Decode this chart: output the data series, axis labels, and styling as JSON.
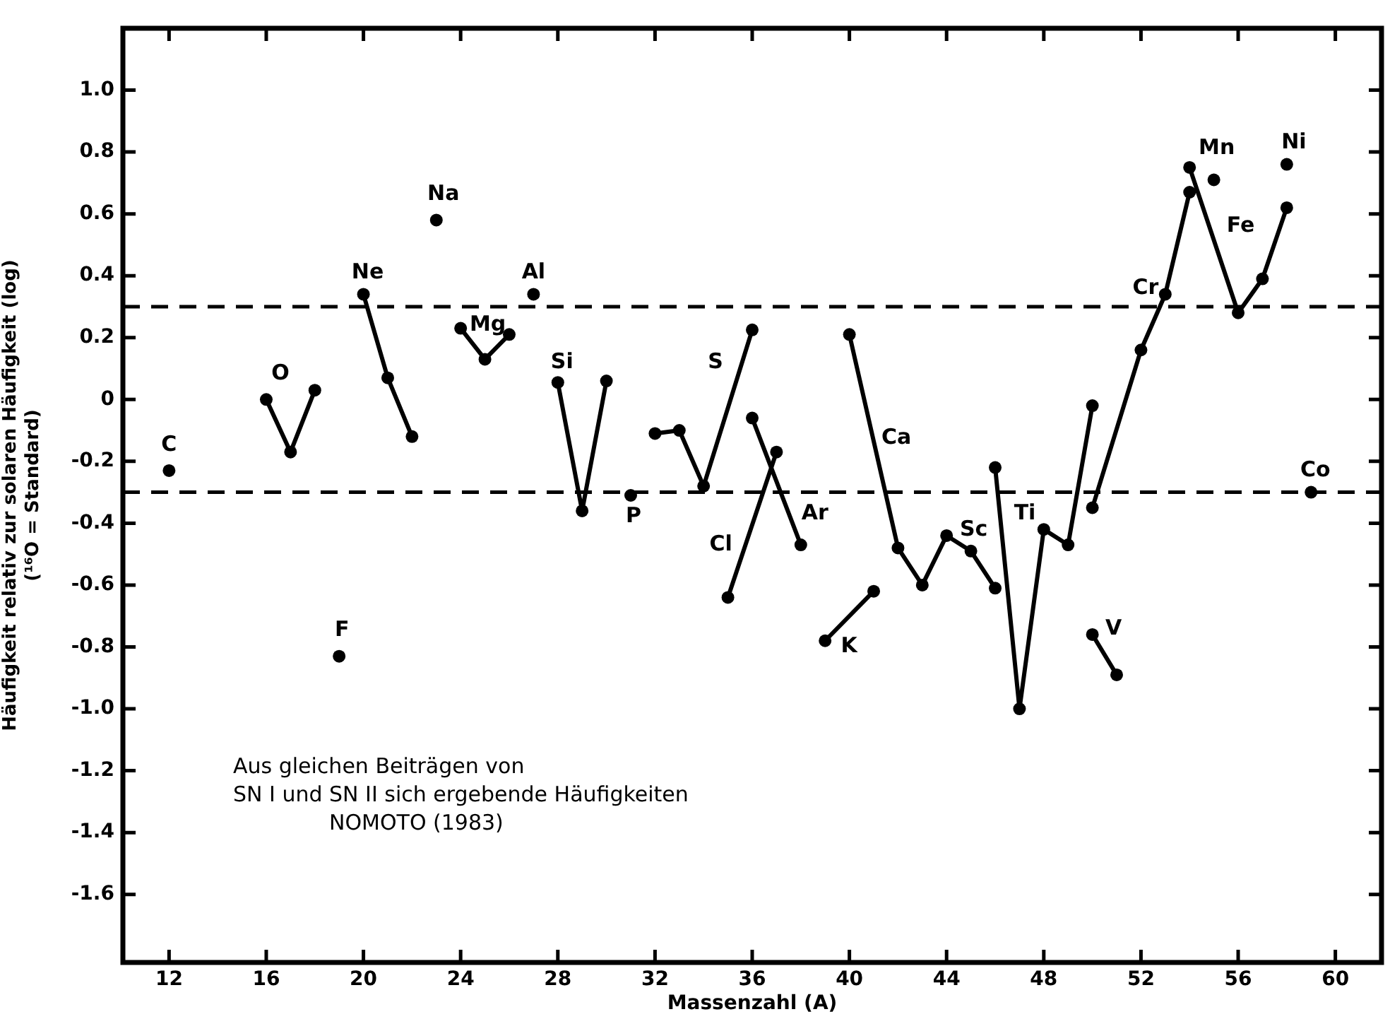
{
  "chart_data": {
    "type": "line",
    "xlabel": "Massenzahl (A)",
    "ylabel": "Häufigkeit relativ zur solaren Häufigkeit (log)\n(¹⁶O = Standard)",
    "xlim": [
      10.1,
      61.9
    ],
    "xticks": [
      12,
      16,
      20,
      24,
      28,
      32,
      36,
      40,
      44,
      48,
      52,
      56,
      60
    ],
    "ylim": [
      -1.82,
      1.2
    ],
    "yticks": [
      {
        "value": 1,
        "label": "1.0"
      },
      0.8,
      0.6,
      0.4,
      0.2,
      0,
      -0.2,
      -0.4,
      -0.6,
      -0.8,
      {
        "value": -1,
        "label": "-1.0"
      },
      -1.2,
      -1.4,
      -1.6
    ],
    "marker": "circle",
    "line_style": "solid",
    "series": [
      {
        "type": "scatter",
        "color": "#000000",
        "x": [
          12
        ],
        "values": [
          -0.23
        ]
      },
      {
        "color": "#000000",
        "x": [
          16,
          17,
          18
        ],
        "values": [
          0.0,
          -0.17,
          0.03
        ]
      },
      {
        "type": "scatter",
        "color": "#000000",
        "x": [
          19
        ],
        "values": [
          -0.83
        ]
      },
      {
        "color": "#000000",
        "x": [
          20,
          21,
          22
        ],
        "values": [
          0.34,
          0.07,
          -0.12
        ]
      },
      {
        "type": "scatter",
        "color": "#000000",
        "x": [
          23
        ],
        "values": [
          0.58
        ]
      },
      {
        "color": "#000000",
        "x": [
          24,
          25,
          26
        ],
        "values": [
          0.23,
          0.13,
          0.21
        ]
      },
      {
        "type": "scatter",
        "color": "#000000",
        "x": [
          27
        ],
        "values": [
          0.34
        ]
      },
      {
        "color": "#000000",
        "x": [
          28,
          29,
          30
        ],
        "values": [
          0.055,
          -0.36,
          0.06
        ]
      },
      {
        "type": "scatter",
        "color": "#000000",
        "x": [
          31
        ],
        "values": [
          -0.31
        ]
      },
      {
        "color": "#000000",
        "x": [
          32,
          33,
          34,
          36
        ],
        "values": [
          -0.11,
          -0.1,
          -0.28,
          0.225
        ]
      },
      {
        "color": "#000000",
        "x": [
          35,
          37
        ],
        "values": [
          -0.64,
          -0.17
        ]
      },
      {
        "color": "#000000",
        "x": [
          36,
          38
        ],
        "values": [
          -0.06,
          -0.47
        ]
      },
      {
        "color": "#000000",
        "x": [
          39,
          41
        ],
        "values": [
          -0.78,
          -0.62
        ]
      },
      {
        "color": "#000000",
        "x": [
          40,
          42,
          43,
          44,
          45,
          46
        ],
        "values": [
          0.21,
          -0.48,
          -0.6,
          -0.44,
          -0.49,
          -0.61
        ]
      },
      {
        "color": "#000000",
        "x": [
          46,
          47,
          48,
          49,
          50
        ],
        "values": [
          -0.22,
          -1.0,
          -0.42,
          -0.47,
          -0.02
        ]
      },
      {
        "color": "#000000",
        "x": [
          50,
          51
        ],
        "values": [
          -0.76,
          -0.89
        ]
      },
      {
        "color": "#000000",
        "x": [
          50,
          52,
          53,
          54
        ],
        "values": [
          -0.35,
          0.16,
          0.34,
          0.67
        ]
      },
      {
        "color": "#000000",
        "x": [
          54,
          56,
          57,
          58
        ],
        "values": [
          0.75,
          0.28,
          0.39,
          0.62
        ]
      },
      {
        "type": "scatter",
        "color": "#000000",
        "x": [
          55
        ],
        "values": [
          0.71
        ]
      },
      {
        "type": "scatter",
        "color": "#000000",
        "x": [
          58
        ],
        "values": [
          0.76
        ]
      },
      {
        "type": "scatter",
        "color": "#000000",
        "x": [
          59
        ],
        "values": [
          -0.3
        ]
      }
    ],
    "ref_lines": [
      {
        "axis": "y",
        "value": 0.3,
        "color": "#000000",
        "line_style": "dashed"
      },
      {
        "axis": "y",
        "value": -0.3,
        "color": "#000000",
        "line_style": "dashed"
      }
    ],
    "annotations": [
      {
        "text": "C",
        "x": 12,
        "y": -0.23
      },
      {
        "text": "O",
        "x": 16,
        "y": 0.0
      },
      {
        "text": "F",
        "x": 19,
        "y": -0.83
      },
      {
        "text": "Ne",
        "x": 20,
        "y": 0.34
      },
      {
        "text": "Na",
        "x": 23,
        "y": 0.58
      },
      {
        "text": "Mg",
        "x": 25,
        "y": 0.13
      },
      {
        "text": "Al",
        "x": 27,
        "y": 0.34
      },
      {
        "text": "Si",
        "x": 28,
        "y": 0.055
      },
      {
        "text": "P",
        "x": 31,
        "y": -0.31
      },
      {
        "text": "S",
        "x": 36,
        "y": 0.225
      },
      {
        "text": "Cl",
        "x": 35,
        "y": -0.64
      },
      {
        "text": "Ar",
        "x": 38,
        "y": -0.47
      },
      {
        "text": "K",
        "x": 39,
        "y": -0.78
      },
      {
        "text": "Ca",
        "x": 41,
        "y": -0.135
      },
      {
        "text": "Sc",
        "x": 45,
        "y": -0.49
      },
      {
        "text": "Ti",
        "x": 46,
        "y": -0.22
      },
      {
        "text": "V",
        "x": 50,
        "y": -0.76
      },
      {
        "text": "Cr",
        "x": 53,
        "y": 0.34
      },
      {
        "text": "Mn",
        "x": 55,
        "y": 0.71
      },
      {
        "text": "Fe",
        "x": 55,
        "y": 0.515
      },
      {
        "text": "Ni",
        "x": 58,
        "y": 0.76
      },
      {
        "text": "Co",
        "x": 59,
        "y": -0.3
      },
      "Aus gleichen Beiträgen von\nSN I und SN II sich ergebende Häufigkeiten\nNOMOTO (1983)"
    ]
  }
}
